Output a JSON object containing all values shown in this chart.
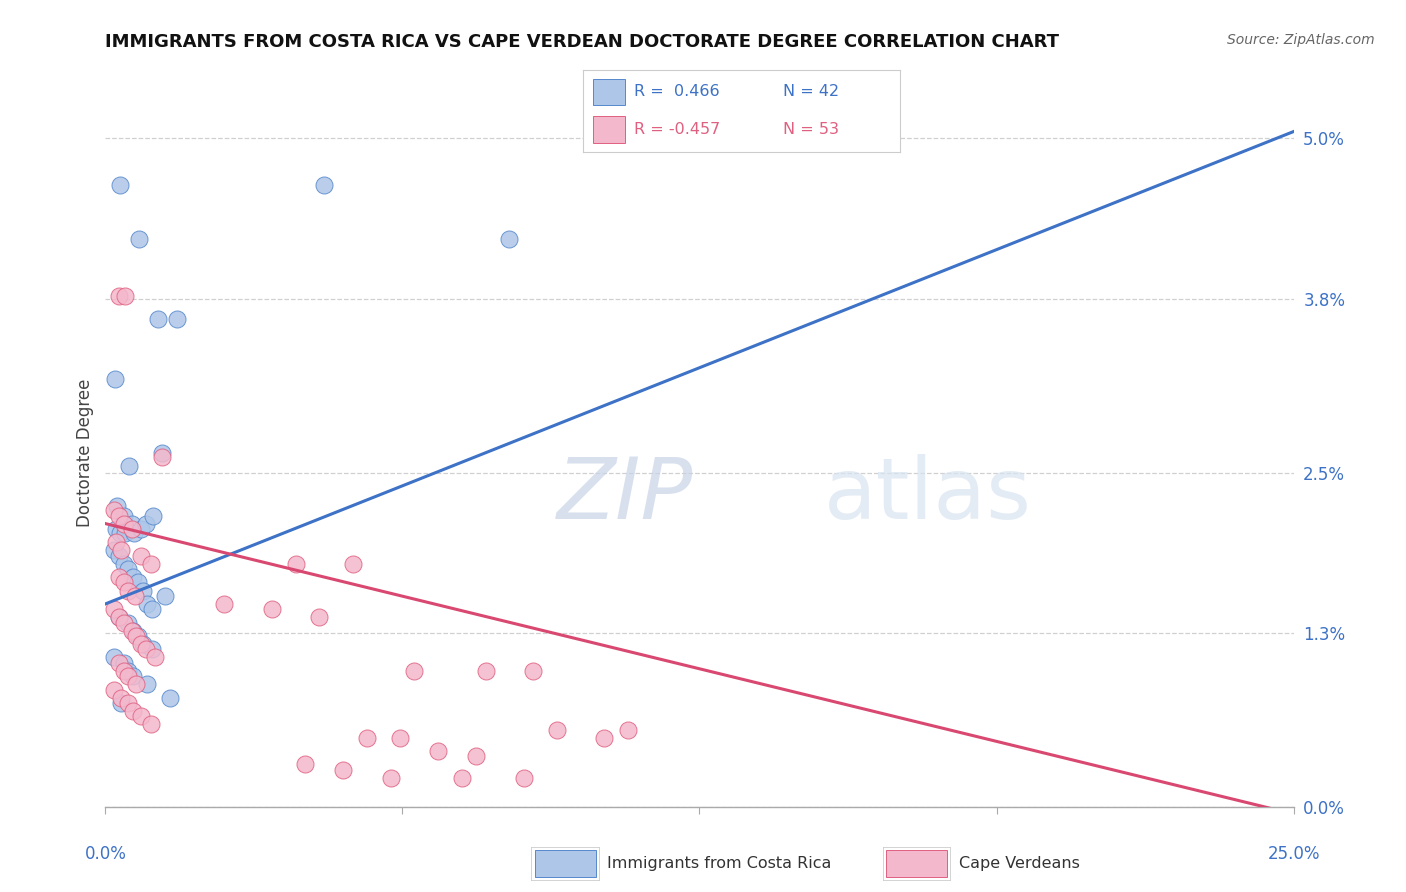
{
  "title": "IMMIGRANTS FROM COSTA RICA VS CAPE VERDEAN DOCTORATE DEGREE CORRELATION CHART",
  "source": "Source: ZipAtlas.com",
  "ylabel": "Doctorate Degree",
  "right_ytick_labels": [
    "0.0%",
    "1.3%",
    "2.5%",
    "3.8%",
    "5.0%"
  ],
  "right_yvals": [
    0.0,
    1.3,
    2.5,
    3.8,
    5.0
  ],
  "blue_scatter_x": [
    0.3,
    0.7,
    1.5,
    0.2,
    1.1,
    0.5,
    1.2,
    0.25,
    0.4,
    0.55,
    0.22,
    0.3,
    0.42,
    0.6,
    0.75,
    0.85,
    1.0,
    0.18,
    0.28,
    0.38,
    0.48,
    0.58,
    0.68,
    0.78,
    1.25,
    0.88,
    0.98,
    0.28,
    0.48,
    0.58,
    0.68,
    0.78,
    0.98,
    0.18,
    0.38,
    0.48,
    0.58,
    0.88,
    1.35,
    0.32,
    4.6,
    8.5
  ],
  "blue_scatter_y": [
    4.65,
    4.25,
    3.65,
    3.2,
    3.65,
    2.55,
    2.65,
    2.25,
    2.18,
    2.12,
    2.08,
    2.05,
    2.05,
    2.05,
    2.08,
    2.12,
    2.18,
    1.92,
    1.88,
    1.82,
    1.78,
    1.72,
    1.68,
    1.62,
    1.58,
    1.52,
    1.48,
    1.42,
    1.38,
    1.32,
    1.28,
    1.22,
    1.18,
    1.12,
    1.08,
    1.02,
    0.98,
    0.92,
    0.82,
    0.78,
    4.65,
    4.25
  ],
  "pink_scatter_x": [
    0.28,
    0.42,
    1.2,
    0.18,
    0.28,
    0.38,
    0.55,
    0.22,
    0.32,
    0.75,
    0.95,
    0.28,
    0.38,
    0.48,
    0.62,
    0.18,
    0.28,
    0.38,
    0.55,
    0.65,
    0.75,
    0.85,
    1.05,
    0.28,
    0.38,
    0.48,
    0.65,
    0.18,
    0.32,
    0.48,
    0.58,
    0.75,
    0.95,
    4.0,
    5.2,
    2.5,
    3.5,
    4.5,
    6.5,
    8.0,
    9.0,
    5.5,
    6.2,
    7.0,
    7.8,
    9.5,
    10.5,
    11.0,
    4.2,
    5.0,
    6.0,
    7.5,
    8.8
  ],
  "pink_scatter_y": [
    3.82,
    3.82,
    2.62,
    2.22,
    2.18,
    2.12,
    2.08,
    1.98,
    1.92,
    1.88,
    1.82,
    1.72,
    1.68,
    1.62,
    1.58,
    1.48,
    1.42,
    1.38,
    1.32,
    1.28,
    1.22,
    1.18,
    1.12,
    1.08,
    1.02,
    0.98,
    0.92,
    0.88,
    0.82,
    0.78,
    0.72,
    0.68,
    0.62,
    1.82,
    1.82,
    1.52,
    1.48,
    1.42,
    1.02,
    1.02,
    1.02,
    0.52,
    0.52,
    0.42,
    0.38,
    0.58,
    0.52,
    0.58,
    0.32,
    0.28,
    0.22,
    0.22,
    0.22
  ],
  "blue_line_x": [
    0.0,
    25.0
  ],
  "blue_line_y": [
    1.52,
    5.05
  ],
  "pink_line_x": [
    0.0,
    25.0
  ],
  "pink_line_y": [
    2.12,
    -0.05
  ],
  "blue_marker_color": "#aec6e8",
  "blue_edge_color": "#5588cc",
  "pink_marker_color": "#f4b8cc",
  "pink_edge_color": "#e06080",
  "blue_line_color": "#3d72c6",
  "pink_line_color": "#d94870",
  "grid_color": "#d0d0d0",
  "bg_color": "#ffffff",
  "xlim": [
    0.0,
    25.0
  ],
  "ylim": [
    0.0,
    5.3
  ]
}
